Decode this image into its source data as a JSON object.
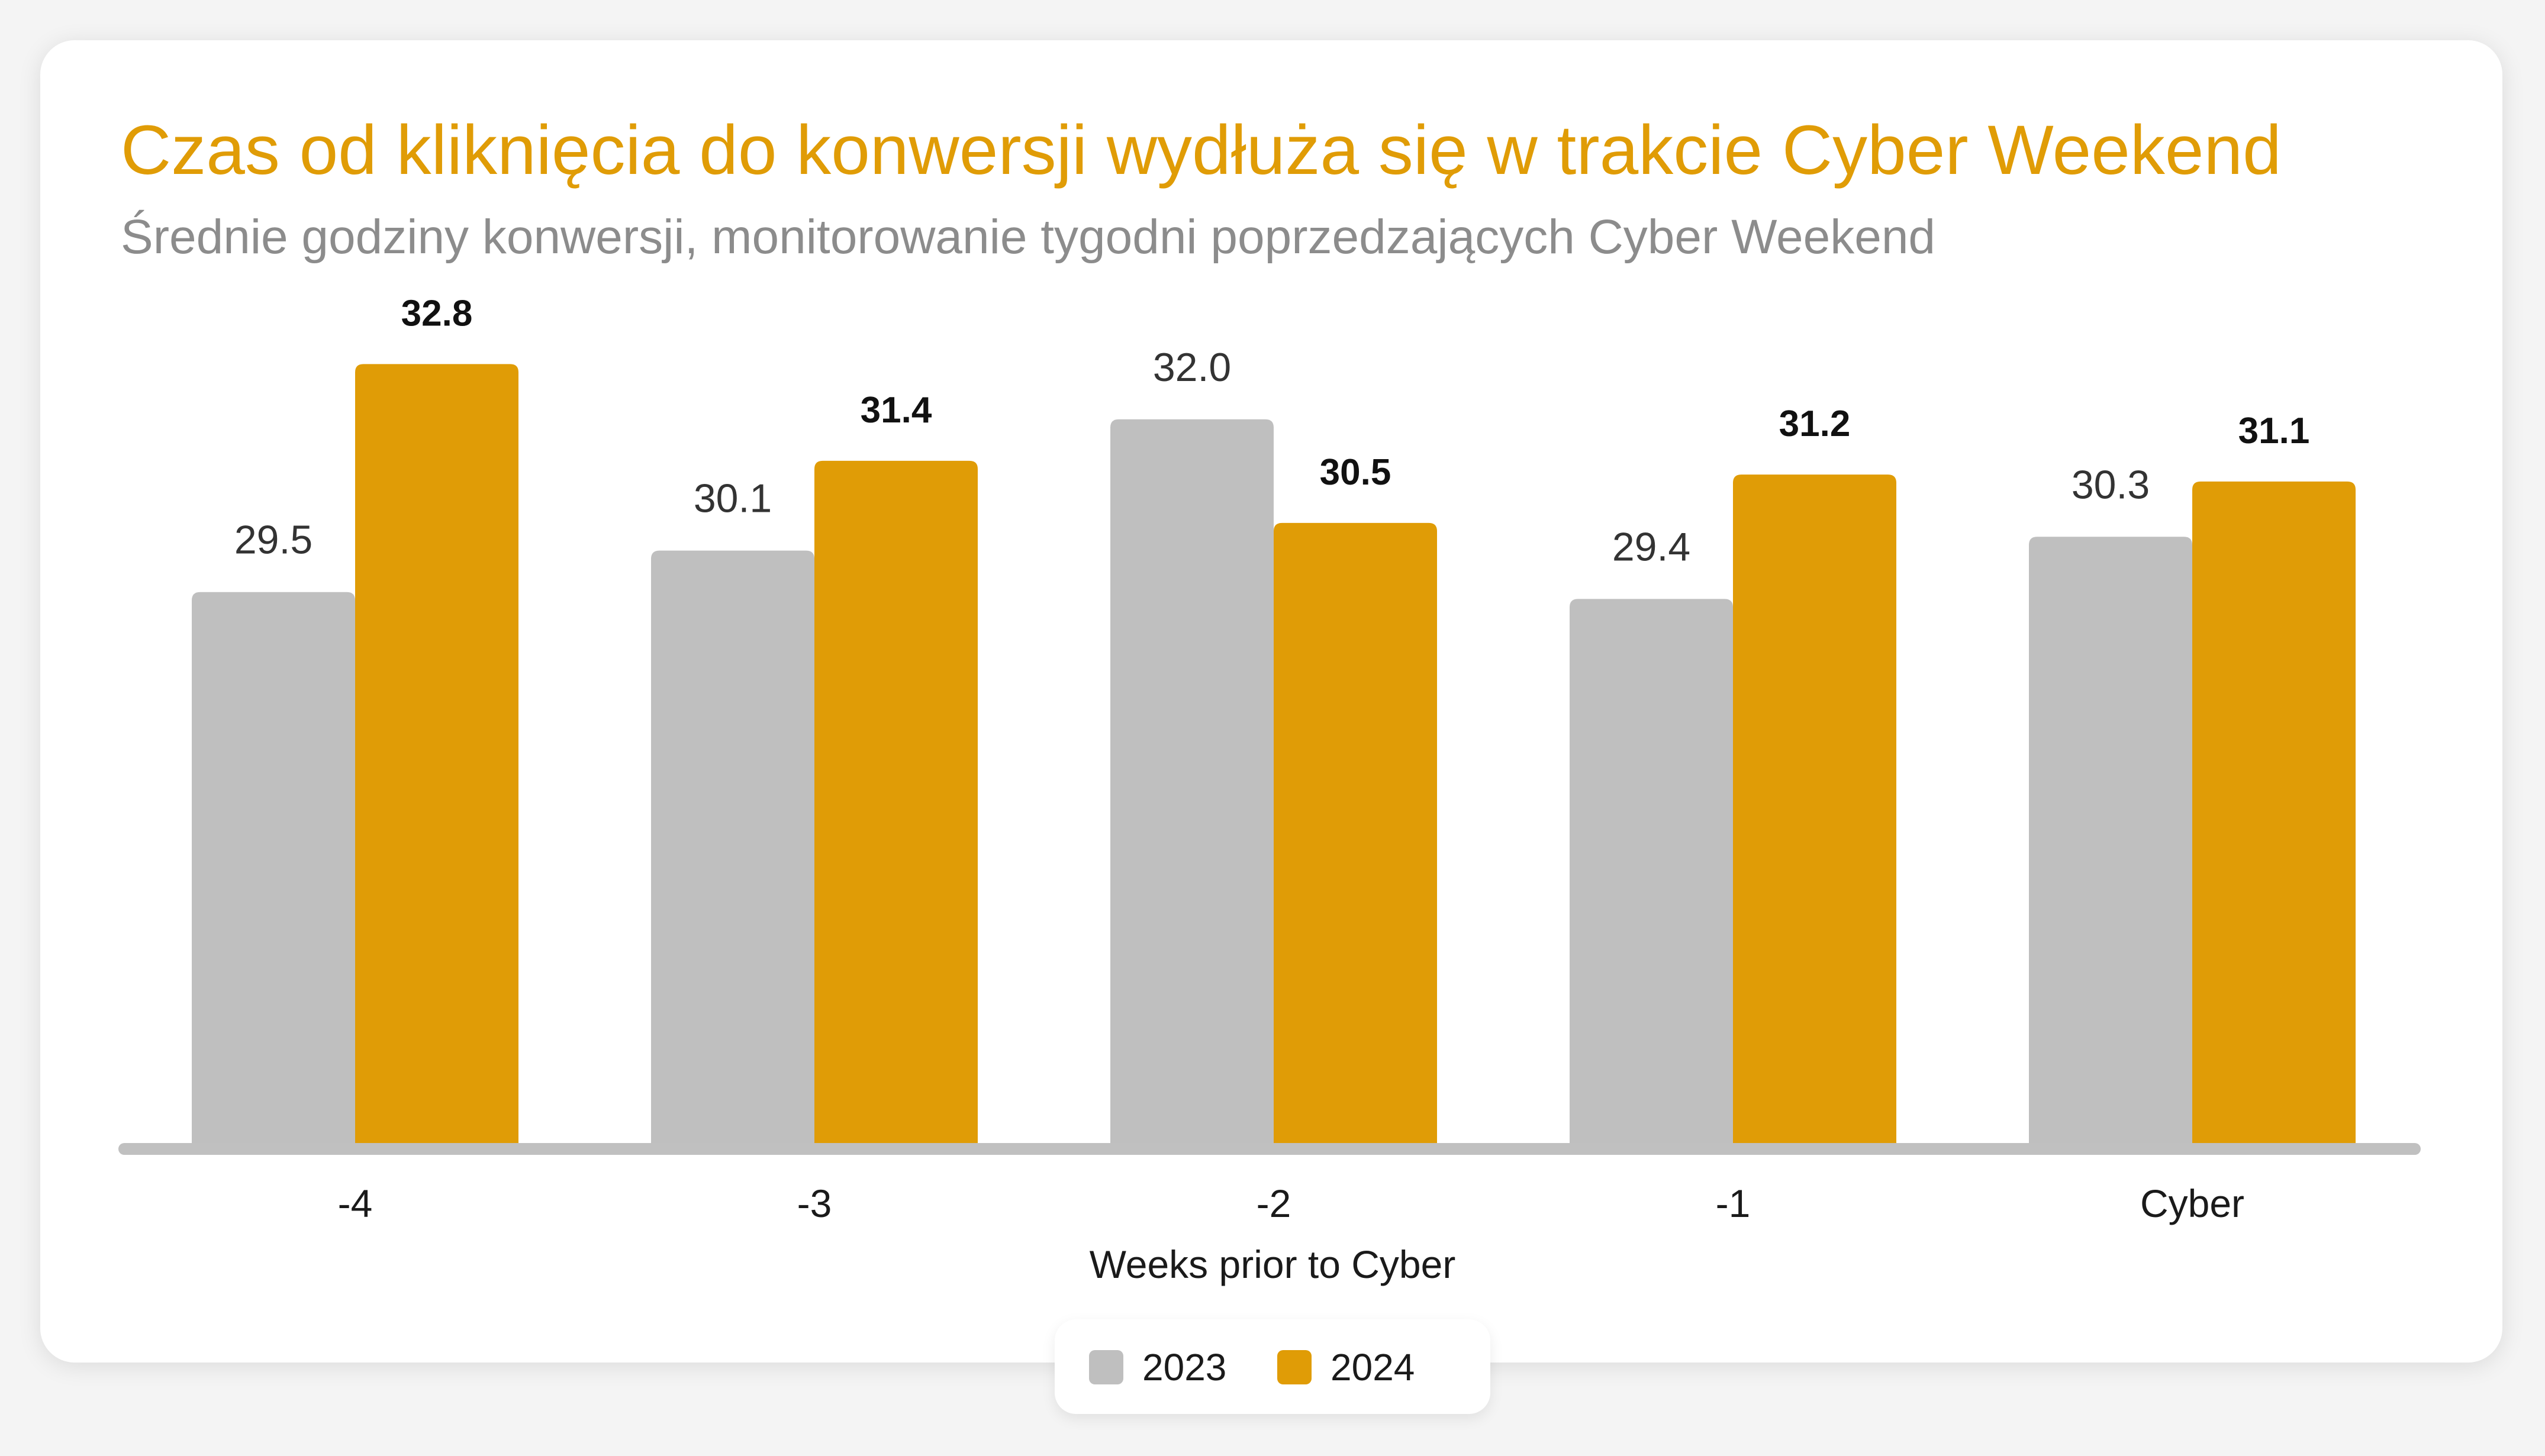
{
  "chart_data": {
    "type": "bar",
    "title": "Czas od kliknięcia do konwersji wydłuża się w trakcie Cyber Weekend",
    "subtitle": "Średnie godziny konwersji, monitorowanie tygodni poprzedzających Cyber Weekend",
    "xlabel": "Weeks prior to Cyber",
    "ylabel": "",
    "categories": [
      "-4",
      "-3",
      "-2",
      "-1",
      "Cyber"
    ],
    "series": [
      {
        "name": "2023",
        "values": [
          29.5,
          30.1,
          32.0,
          29.4,
          30.3
        ],
        "color": "#bfbfbf"
      },
      {
        "name": "2024",
        "values": [
          32.8,
          31.4,
          30.5,
          31.2,
          31.1
        ],
        "color": "#e09c06"
      }
    ],
    "ylim": [
      21.5,
      35.5
    ],
    "grid": false,
    "legend": "bottom-center"
  },
  "colors": {
    "accent": "#e09c06",
    "bar_2023": "#bfbfbf",
    "axis": "#c0c0c0",
    "subtitle": "#8c8c8c"
  }
}
